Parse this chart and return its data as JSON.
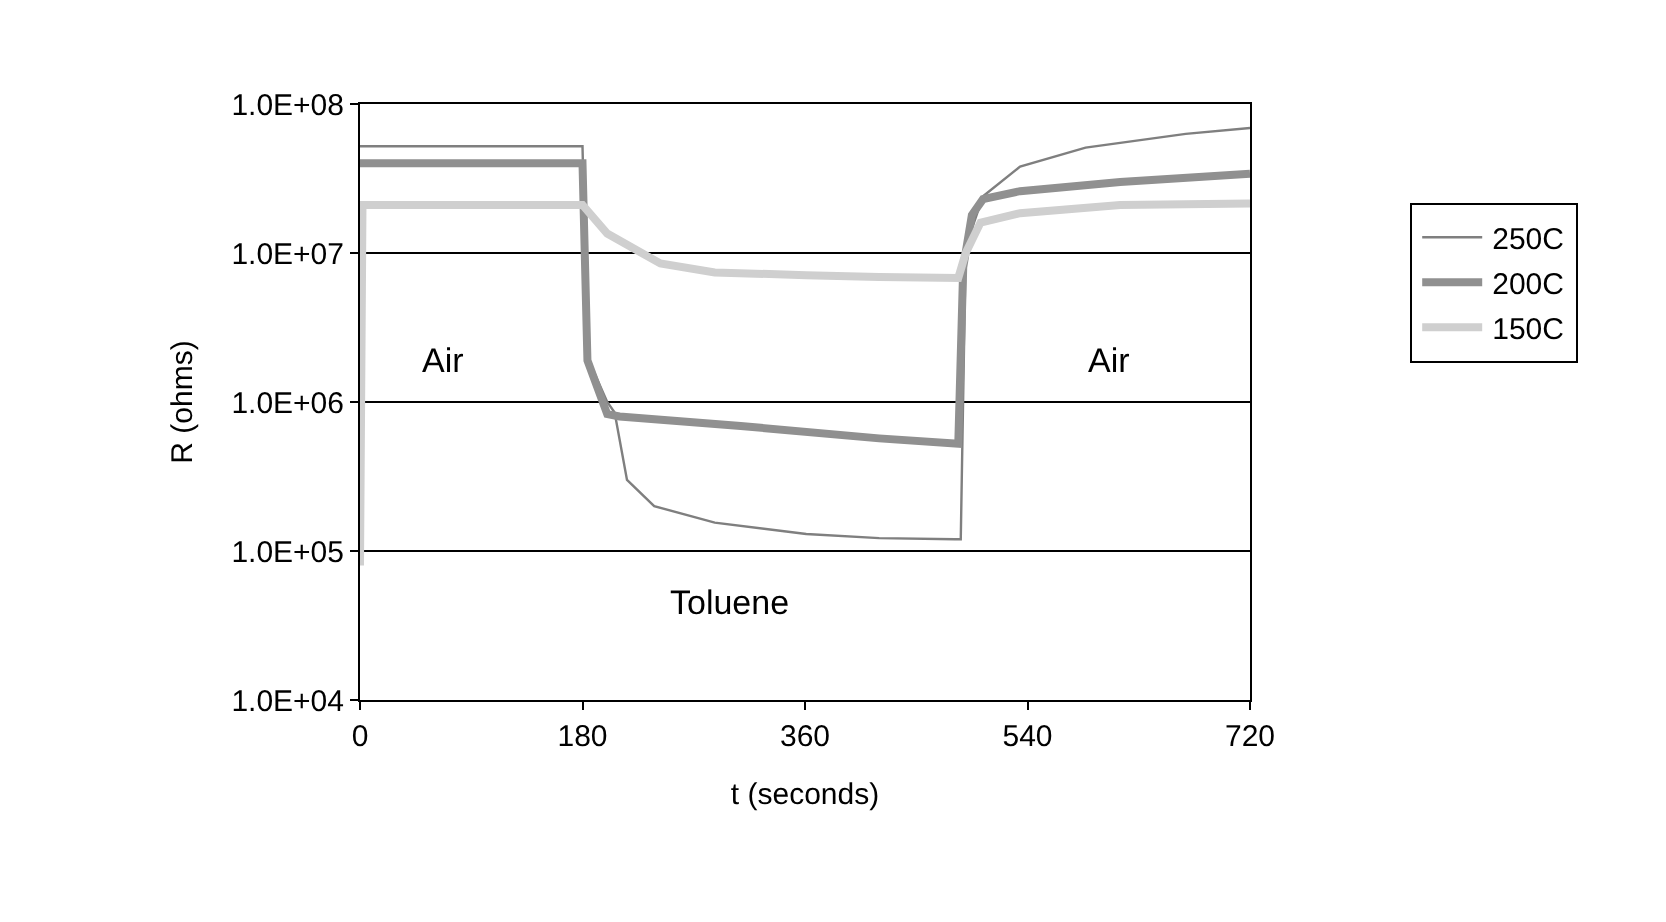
{
  "chart_data": {
    "type": "line",
    "xlabel": "t (seconds)",
    "ylabel": "R (ohms)",
    "log": "y",
    "xlim": [
      0,
      720
    ],
    "xticks": [
      0,
      180,
      360,
      540,
      720
    ],
    "ylim": [
      10000,
      100000000
    ],
    "yticks": [
      {
        "value": 10000,
        "label": "1.0E+04"
      },
      {
        "value": 100000,
        "label": "1.0E+05"
      },
      {
        "value": 1000000,
        "label": "1.0E+06"
      },
      {
        "value": 10000000,
        "label": "1.0E+07"
      },
      {
        "value": 100000000,
        "label": "1.0E+08"
      }
    ],
    "grid": "y",
    "legend": "right",
    "marker": "none",
    "line_style": "solid",
    "series": [
      {
        "name": "250C",
        "color": "#7f7f7f",
        "x": [
          0,
          60,
          120,
          180,
          184,
          200,
          206,
          216,
          238,
          287,
          361,
          420,
          481,
          486,
          490,
          504,
          534,
          587,
          668,
          720
        ],
        "values": [
          52000000,
          52000000,
          52000000,
          52000000,
          2000000,
          1000000,
          850000,
          300000,
          200000,
          155000,
          130000,
          122000,
          120000,
          120000,
          11000000,
          24000000,
          38000000,
          51000000,
          63000000,
          69000000
        ]
      },
      {
        "name": "200C",
        "color": "#909090",
        "x": [
          0,
          60,
          120,
          180,
          184,
          200,
          210,
          308,
          420,
          484,
          488,
          495,
          504,
          534,
          615,
          720
        ],
        "values": [
          40000000,
          40000000,
          40000000,
          40000000,
          1900000,
          830000,
          800000,
          690000,
          570000,
          525000,
          8000000,
          18000000,
          23000000,
          26000000,
          30000000,
          34000000
        ]
      },
      {
        "name": "150C",
        "color": "#cfcfcf",
        "x": [
          0,
          2,
          60,
          120,
          180,
          200,
          243,
          287,
          361,
          420,
          484,
          490,
          502,
          534,
          615,
          720
        ],
        "values": [
          80000,
          21000000,
          21000000,
          21000000,
          21000000,
          13500000,
          8500000,
          7400000,
          7100000,
          6900000,
          6800000,
          10000000,
          16000000,
          18500000,
          21000000,
          21500000
        ]
      }
    ],
    "annotations": [
      "Air",
      "Air",
      "Toluene"
    ]
  }
}
